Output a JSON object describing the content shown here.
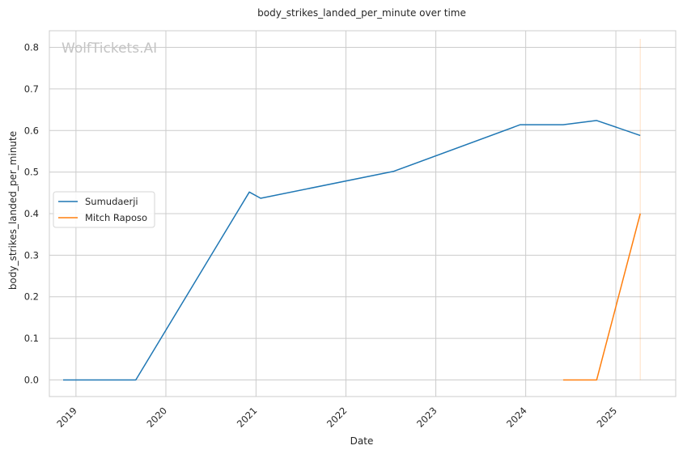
{
  "chart_data": {
    "type": "line",
    "title": "body_strikes_landed_per_minute over time",
    "xlabel": "Date",
    "ylabel": "body_strikes_landed_per_minute",
    "watermark": "WolfTickets.AI",
    "x_ticks": [
      "2019",
      "2020",
      "2021",
      "2022",
      "2023",
      "2024",
      "2025"
    ],
    "y_ticks": [
      "0.0",
      "0.1",
      "0.2",
      "0.3",
      "0.4",
      "0.5",
      "0.6",
      "0.7",
      "0.8"
    ],
    "xlim": [
      "2018-09-15",
      "2025-09-01"
    ],
    "ylim": [
      -0.04,
      0.84
    ],
    "grid": true,
    "legend_position": "center-left",
    "series": [
      {
        "name": "Sumudaerji",
        "color": "#1f77b4",
        "points": [
          {
            "x": "2018-11-10",
            "y": 0.0
          },
          {
            "x": "2019-09-01",
            "y": 0.0
          },
          {
            "x": "2020-12-05",
            "y": 0.452
          },
          {
            "x": "2021-01-20",
            "y": 0.437
          },
          {
            "x": "2022-07-15",
            "y": 0.502
          },
          {
            "x": "2023-12-10",
            "y": 0.614
          },
          {
            "x": "2024-06-01",
            "y": 0.614
          },
          {
            "x": "2024-10-15",
            "y": 0.624
          },
          {
            "x": "2025-04-10",
            "y": 0.588
          }
        ]
      },
      {
        "name": "Mitch Raposo",
        "color": "#ff7f0e",
        "points": [
          {
            "x": "2024-06-01",
            "y": 0.0
          },
          {
            "x": "2024-10-15",
            "y": 0.0
          },
          {
            "x": "2025-04-10",
            "y": 0.4
          }
        ]
      }
    ],
    "annotations": [
      {
        "type": "vertical-line",
        "x": "2025-04-10",
        "color": "#ff7f0e"
      }
    ]
  }
}
